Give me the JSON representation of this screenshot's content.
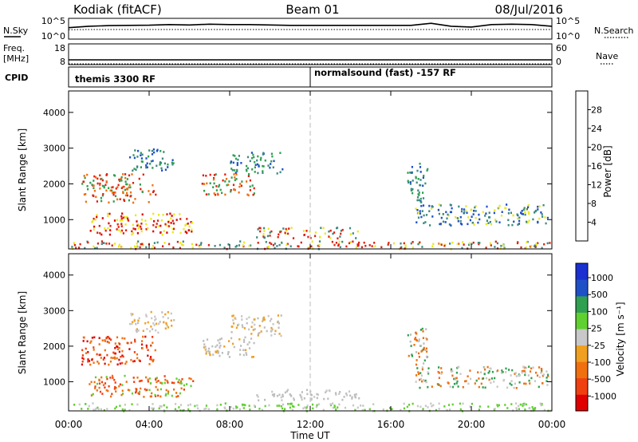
{
  "header": {
    "station": "Kodiak (fitACF)",
    "beam": "Beam 01",
    "date": "08/Jul/2016"
  },
  "colors": {
    "power_scale": [
      "#0000e0",
      "#2050c8",
      "#3c8a80",
      "#2fa050",
      "#e8e820",
      "#f0a020",
      "#f07010",
      "#e02010",
      "#e00000"
    ],
    "velocity_scale": [
      "#e00000",
      "#f04010",
      "#f07010",
      "#f0a020",
      "#c8c8c8",
      "#60d030",
      "#2fa050",
      "#2050c8",
      "#1a30d0"
    ],
    "ground_scatter": "#bebebe"
  },
  "chart_data": [
    {
      "name": "nsky-nsearch",
      "type": "line",
      "left_label": "N.Sky",
      "right_label": "N.Search",
      "left_ticks": [
        "10^5",
        "10^0"
      ],
      "right_ticks": [
        "10^5",
        "10^0"
      ],
      "x": [
        0,
        1,
        2,
        3,
        4,
        5,
        6,
        7,
        8,
        9,
        10,
        11,
        12,
        13,
        14,
        15,
        16,
        17,
        18,
        19,
        20,
        21,
        22,
        23,
        24
      ],
      "series": [
        {
          "values": [
            0.55,
            0.62,
            0.65,
            0.66,
            0.67,
            0.7,
            0.68,
            0.72,
            0.7,
            0.7,
            0.68,
            0.66,
            0.66,
            0.66,
            0.66,
            0.66,
            0.66,
            0.66,
            0.76,
            0.62,
            0.58,
            0.7,
            0.72,
            0.7,
            0.62
          ]
        },
        {
          "values": [
            0.45,
            0.46,
            0.46,
            0.46,
            0.46,
            0.46,
            0.46,
            0.46,
            0.46,
            0.46,
            0.46,
            0.46,
            0.46,
            0.46,
            0.46,
            0.46,
            0.46,
            0.46,
            0.46,
            0.46,
            0.46,
            0.46,
            0.46,
            0.46,
            0.46
          ]
        }
      ]
    },
    {
      "name": "freq-nave",
      "type": "line",
      "left_label": "Freq.",
      "left_unit": "[MHz]",
      "right_label": "Nave",
      "left_ticks": [
        "18",
        "8"
      ],
      "right_ticks": [
        "60",
        "0"
      ],
      "x": [
        0,
        24
      ],
      "series": [
        {
          "values": [
            10.3,
            10.3
          ]
        },
        {
          "values": [
            0,
            0
          ]
        }
      ]
    },
    {
      "name": "cpid",
      "type": "table",
      "label": "CPID",
      "segments": [
        {
          "start": 0,
          "end": 12,
          "text": "themis 3300 RF"
        },
        {
          "start": 12,
          "end": 24,
          "text": "normalsound (fast) -157 RF"
        }
      ]
    },
    {
      "name": "power",
      "type": "heatmap",
      "ylabel": "Slant Range [km]",
      "yticks": [
        1000,
        2000,
        3000,
        4000
      ],
      "ylim": [
        180,
        4600
      ],
      "colorbar_label": "Power [dB]",
      "colorbar_ticks": [
        4,
        8,
        12,
        16,
        20,
        24,
        28
      ],
      "colorbar_range": [
        0,
        30
      ],
      "regions": [
        {
          "t0": 0.1,
          "t1": 24.0,
          "r0": 200,
          "r1": 420,
          "values": [
            8,
            16,
            24
          ]
        },
        {
          "t0": 0.6,
          "t1": 4.3,
          "r0": 1500,
          "r1": 2300,
          "values": [
            12,
            20,
            24
          ]
        },
        {
          "t0": 1.0,
          "t1": 6.2,
          "r0": 600,
          "r1": 1200,
          "values": [
            16,
            24,
            28
          ]
        },
        {
          "t0": 6.6,
          "t1": 9.2,
          "r0": 1700,
          "r1": 2300,
          "values": [
            12,
            20,
            24
          ]
        },
        {
          "t0": 8.0,
          "t1": 10.6,
          "r0": 2300,
          "r1": 2900,
          "values": [
            4,
            8,
            12
          ]
        },
        {
          "t0": 9.3,
          "t1": 14.5,
          "r0": 500,
          "r1": 800,
          "values": [
            8,
            16,
            24
          ]
        },
        {
          "t0": 16.8,
          "t1": 17.8,
          "r0": 1500,
          "r1": 2600,
          "values": [
            4,
            8,
            12
          ]
        },
        {
          "t0": 17.2,
          "t1": 23.8,
          "r0": 850,
          "r1": 1450,
          "values": [
            4,
            8,
            16
          ]
        },
        {
          "t0": 3.0,
          "t1": 5.2,
          "r0": 2400,
          "r1": 3000,
          "values": [
            4,
            8,
            12
          ]
        }
      ]
    },
    {
      "name": "velocity",
      "type": "heatmap",
      "ylabel": "Slant Range [km]",
      "yticks": [
        1000,
        2000,
        3000,
        4000
      ],
      "ylim": [
        180,
        4600
      ],
      "colorbar_label": "Velocity [m s⁻¹]",
      "colorbar_ticks": [
        1000,
        500,
        100,
        25,
        -25,
        -100,
        -500,
        -1000
      ],
      "regions": [
        {
          "t0": 0.1,
          "t1": 24.0,
          "r0": 200,
          "r1": 420,
          "values": [
            100,
            25
          ]
        },
        {
          "t0": 0.6,
          "t1": 4.3,
          "r0": 1500,
          "r1": 2300,
          "values": [
            -500,
            -1000,
            -100
          ]
        },
        {
          "t0": 1.0,
          "t1": 6.2,
          "r0": 600,
          "r1": 1200,
          "values": [
            -100,
            -500,
            100
          ]
        },
        {
          "t0": 6.6,
          "t1": 9.2,
          "r0": 1700,
          "r1": 2300,
          "values": [
            0,
            0,
            -25
          ]
        },
        {
          "t0": 8.0,
          "t1": 10.6,
          "r0": 2300,
          "r1": 2900,
          "values": [
            0,
            -25,
            25
          ]
        },
        {
          "t0": 9.3,
          "t1": 14.5,
          "r0": 500,
          "r1": 800,
          "values": [
            0,
            0,
            25
          ]
        },
        {
          "t0": 16.8,
          "t1": 17.8,
          "r0": 1500,
          "r1": 2600,
          "values": [
            0,
            -100,
            500
          ]
        },
        {
          "t0": 17.2,
          "t1": 23.8,
          "r0": 850,
          "r1": 1450,
          "values": [
            -100,
            25,
            500
          ]
        },
        {
          "t0": 3.0,
          "t1": 5.2,
          "r0": 2400,
          "r1": 3000,
          "values": [
            0,
            25,
            -25
          ]
        }
      ]
    }
  ],
  "xaxis": {
    "ticks": [
      "00:00",
      "04:00",
      "08:00",
      "12:00",
      "16:00",
      "20:00",
      "00:00"
    ],
    "tick_hours": [
      0,
      4,
      8,
      12,
      16,
      20,
      24
    ],
    "label": "Time UT",
    "range": [
      0,
      24
    ]
  }
}
